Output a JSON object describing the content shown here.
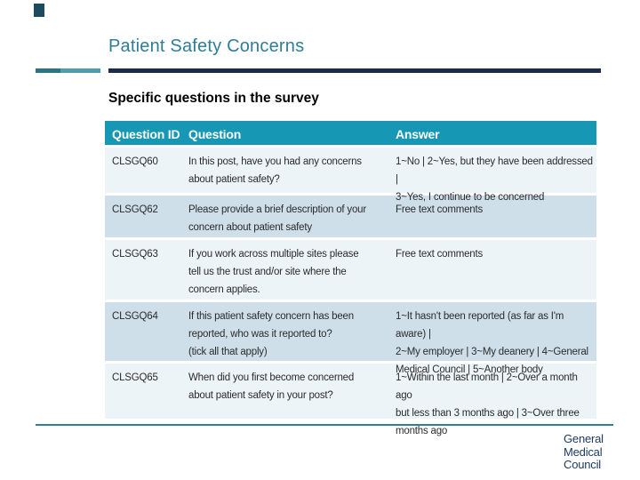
{
  "slide": {
    "title": "Patient Safety Concerns",
    "subtitle": "Specific questions in the survey",
    "accent_teal": "#1697b3",
    "accent_navy": "#1b2a4d",
    "row_light": "#edf4f8",
    "row_medium": "#cedfea"
  },
  "table": {
    "headers": [
      "Question ID",
      "Question",
      "Answer"
    ],
    "rows": [
      {
        "id": "CLSGQ60",
        "question": "In this post, have you had any concerns\nabout patient safety?",
        "answer": "1~No | 2~Yes, but they have been addressed |\n3~Yes, I continue to be concerned"
      },
      {
        "id": "CLSGQ62",
        "question": "Please provide a brief description of your\nconcern about patient safety",
        "answer": "Free text comments"
      },
      {
        "id": "CLSGQ63",
        "question": "If you work across multiple sites please\ntell us the trust and/or site where the\nconcern applies.",
        "answer": "Free text comments"
      },
      {
        "id": "CLSGQ64",
        "question": "If this patient safety concern has been\nreported, who was it reported to?\n(tick all that apply)",
        "answer": "1~It hasn't been reported (as far as I'm aware) |\n2~My employer | 3~My deanery | 4~General\nMedical Council | 5~Another body"
      },
      {
        "id": "CLSGQ65",
        "question": "When did you first become concerned\nabout patient safety in your post?",
        "answer": "1~Within the last month | 2~Over a month ago\nbut less than 3 months ago | 3~Over three\nmonths ago"
      }
    ]
  },
  "logo": {
    "lines": [
      "General",
      "Medical",
      "Council"
    ]
  }
}
